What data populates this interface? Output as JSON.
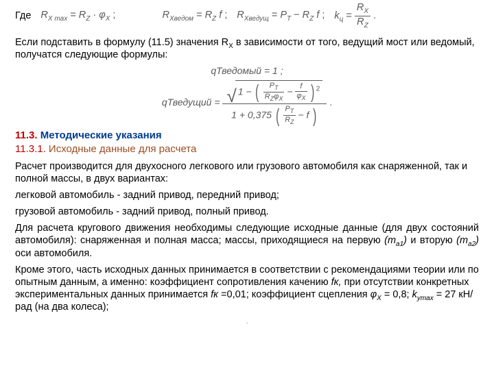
{
  "top": {
    "where": "Где",
    "f1_lhs": "R",
    "f1_lhs_sub": "X max",
    "f1_rhs_a": "R",
    "f1_rhs_a_sub": "Z",
    "f1_rhs_b": "φ",
    "f1_rhs_b_sub": "X",
    "f1_tail": " ;",
    "f2_lhs": "R",
    "f2_lhs_sub": "Xведом",
    "f2_rhs_a": "R",
    "f2_rhs_a_sub": "Z",
    "f2_rhs_b": "f",
    "f2_tail": " ;",
    "f3_lhs": "R",
    "f3_lhs_sub": "Xведущ",
    "f3_rhs_a": "P",
    "f3_rhs_a_sub": "T",
    "f3_rhs_b": "R",
    "f3_rhs_b_sub": "Z",
    "f3_rhs_c": "f",
    "f3_tail": " ;",
    "f4_lhs": "k",
    "f4_lhs_sub": "ц",
    "f4_num": "R",
    "f4_num_sub": "X",
    "f4_den": "R",
    "f4_den_sub": "Z",
    "f4_tail": " ."
  },
  "p1": "Если подставить в формулу (11.5) значения R",
  "p1_sub": "X",
  "p1_cont": " в зависимости от того, ведущий мост или ведомый, получатся следующие формулы:",
  "big": {
    "l1_lhs": "q",
    "l1_lhs_sub": "Тведомый",
    "l1_rhs": "1",
    "l1_tail": " ;",
    "l2_lhs": "q",
    "l2_lhs_sub": "Тведущий",
    "num_lead": "1 − ",
    "pt": "P",
    "pt_sub": "T",
    "rz": "R",
    "rz_sub": "Z",
    "phix": "φ",
    "phix_sub": "X",
    "minus": " − ",
    "f": "f",
    "den_lead": "1 + 0,375 ",
    "den_pt": "P",
    "den_pt_sub": "T",
    "den_rz": "R",
    "den_rz_sub": "Z",
    "den_minus": " − ",
    "den_f": "f",
    "tail": " ."
  },
  "h1_num": "11.3.",
  "h1_txt": " Методические указания",
  "h2_num": "11.3.1.",
  "h2_txt": " Исходные данные для расчета",
  "p2": "Расчет производится для двухосного легкового или грузового автомобиля как снаряженной, так и полной массы, в двух вариантах:",
  "p3": " легковой автомобиль - задний привод, передний привод;",
  "p4": " грузовой автомобиль - задний привод, полный привод.",
  "p5": "Для расчета кругового движения необходимы следующие исходные данные (для двух состояний автомобиля): снаряженная и полная масса; массы, приходящиеся на первую ",
  "p5_m1": "(m",
  "p5_m1_sub": "а1",
  "p5_m1_end": ")",
  "p5_mid": " и вторую ",
  "p5_m2": "(m",
  "p5_m2_sub": "а2",
  "p5_m2_end": ")",
  "p5_end": " оси автомобиля.",
  "p6a": "Кроме этого, часть исходных данных принимается в соответствии с рекомендациями теории или по опытным данным, а именно: коэффициент сопротивления качению ",
  "p6_fk": "fк,",
  "p6b": " при отсутствии конкретных экспериментальных данных принимается ",
  "p6_fk2": "fк ",
  "p6_fkval": "=0,01; коэффициент сцепления ",
  "p6_phi": "φ",
  "p6_phi_sub": "X",
  "p6_phival": " = 0,8; ",
  "p6_k": "k",
  "p6_k_sub": "уmax",
  "p6_kval": " = 27 кН/рад (на два колеса);",
  "foot": "."
}
